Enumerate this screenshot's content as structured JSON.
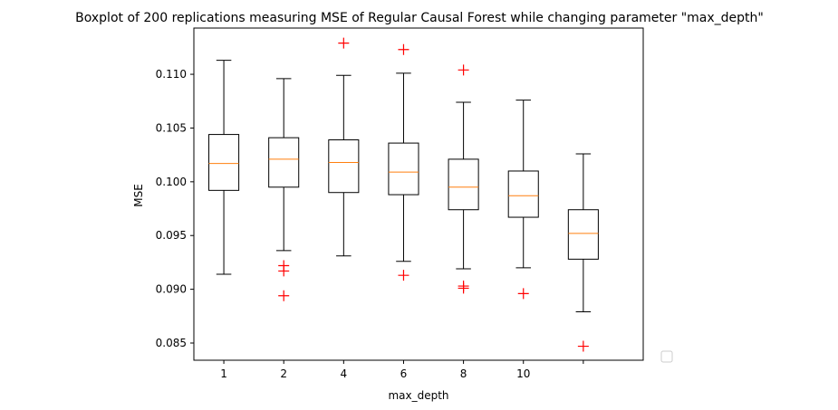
{
  "chart_data": {
    "type": "boxplot",
    "title": "Boxplot of 200 replications measuring MSE of Regular Causal Forest while changing parameter \"max_depth\"",
    "xlabel": "max_depth",
    "ylabel": "MSE",
    "categories": [
      "1",
      "2",
      "4",
      "6",
      "8",
      "10",
      ""
    ],
    "ylim": [
      0.0834,
      0.1143
    ],
    "yticks": [
      0.085,
      0.09,
      0.095,
      0.1,
      0.105,
      0.11
    ],
    "ytick_labels": [
      "0.085",
      "0.090",
      "0.095",
      "0.100",
      "0.105",
      "0.110"
    ],
    "grid": false,
    "legend": "bottom-right outside, empty",
    "colors": {
      "box": "#000000",
      "median": "#ff7f0e",
      "flier": "#ff0000"
    },
    "boxes": [
      {
        "category": "1",
        "whisker_low": 0.0914,
        "q1": 0.0992,
        "median": 0.1017,
        "q3": 0.1044,
        "whisker_high": 0.1113,
        "fliers": []
      },
      {
        "category": "2",
        "whisker_low": 0.0936,
        "q1": 0.0995,
        "median": 0.1021,
        "q3": 0.1041,
        "whisker_high": 0.1096,
        "fliers": [
          0.0922,
          0.0917,
          0.0894
        ]
      },
      {
        "category": "4",
        "whisker_low": 0.0931,
        "q1": 0.099,
        "median": 0.1018,
        "q3": 0.1039,
        "whisker_high": 0.1099,
        "fliers": [
          0.1129
        ]
      },
      {
        "category": "6",
        "whisker_low": 0.0926,
        "q1": 0.0988,
        "median": 0.1009,
        "q3": 0.1036,
        "whisker_high": 0.1101,
        "fliers": [
          0.1123,
          0.0913
        ]
      },
      {
        "category": "8",
        "whisker_low": 0.0919,
        "q1": 0.0974,
        "median": 0.0995,
        "q3": 0.1021,
        "whisker_high": 0.1074,
        "fliers": [
          0.1104,
          0.0903,
          0.0901
        ]
      },
      {
        "category": "10",
        "whisker_low": 0.092,
        "q1": 0.0967,
        "median": 0.0987,
        "q3": 0.101,
        "whisker_high": 0.1076,
        "fliers": [
          0.0896
        ]
      },
      {
        "category": "",
        "whisker_low": 0.0879,
        "q1": 0.0928,
        "median": 0.0952,
        "q3": 0.0974,
        "whisker_high": 0.1026,
        "fliers": [
          0.0847
        ]
      }
    ]
  }
}
